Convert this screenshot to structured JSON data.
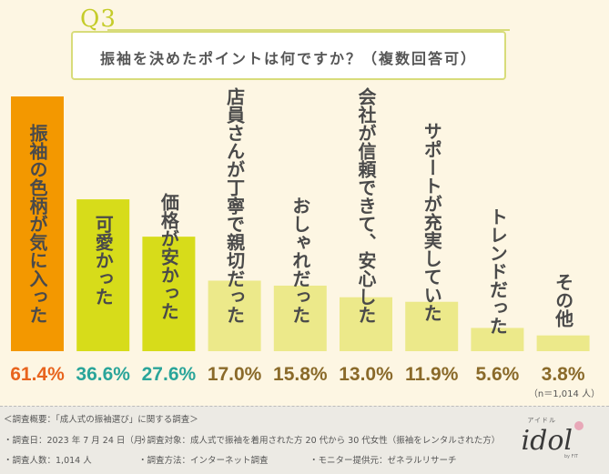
{
  "question_label": "Q3",
  "chart_data": {
    "type": "bar",
    "title": "振袖を決めたポイントは何ですか？（複数回答可）",
    "categories": [
      "振袖の色柄が気に入った",
      "可愛かった",
      "価格が安かった",
      "店員さんが丁寧で親切だった",
      "おしゃれだった",
      "会社が信頼できて、安心した",
      "サポートが充実していた",
      "トレンドだった",
      "その他"
    ],
    "values": [
      61.4,
      36.6,
      27.6,
      17.0,
      15.8,
      13.0,
      11.9,
      5.6,
      3.8
    ],
    "value_labels": [
      "61.4%",
      "36.6%",
      "27.6%",
      "17.0%",
      "15.8%",
      "13.0%",
      "11.9%",
      "5.6%",
      "3.8%"
    ],
    "bar_colors": [
      "#f39800",
      "#d7dc1a",
      "#d7dc1a",
      "#ece98a",
      "#ece98a",
      "#ece98a",
      "#ece98a",
      "#ece98a",
      "#ece98a"
    ],
    "value_colors": [
      "#e8641e",
      "#2aa59a",
      "#2aa59a",
      "#8a6a2a",
      "#8a6a2a",
      "#8a6a2a",
      "#8a6a2a",
      "#8a6a2a",
      "#8a6a2a"
    ],
    "ylim": [
      0,
      61.4
    ],
    "sample_note": "（n＝1,014 人）"
  },
  "footer": {
    "heading": "＜調査概要：「成人式の振袖選び」に関する調査＞",
    "date": "・調査日：2023 年 7 月 24 日（月）",
    "target": "・調査対象：成人式で振袖を着用された方 20 代から 30 代女性（振袖をレンタルされた方）",
    "count": "・調査人数：1,014 人",
    "method": "・調査方法：インターネット調査",
    "provider": "・モニター提供元：ゼネラルリサーチ"
  },
  "logo": {
    "text": "idol",
    "kana": "アイドル",
    "sub": "by FIT"
  }
}
